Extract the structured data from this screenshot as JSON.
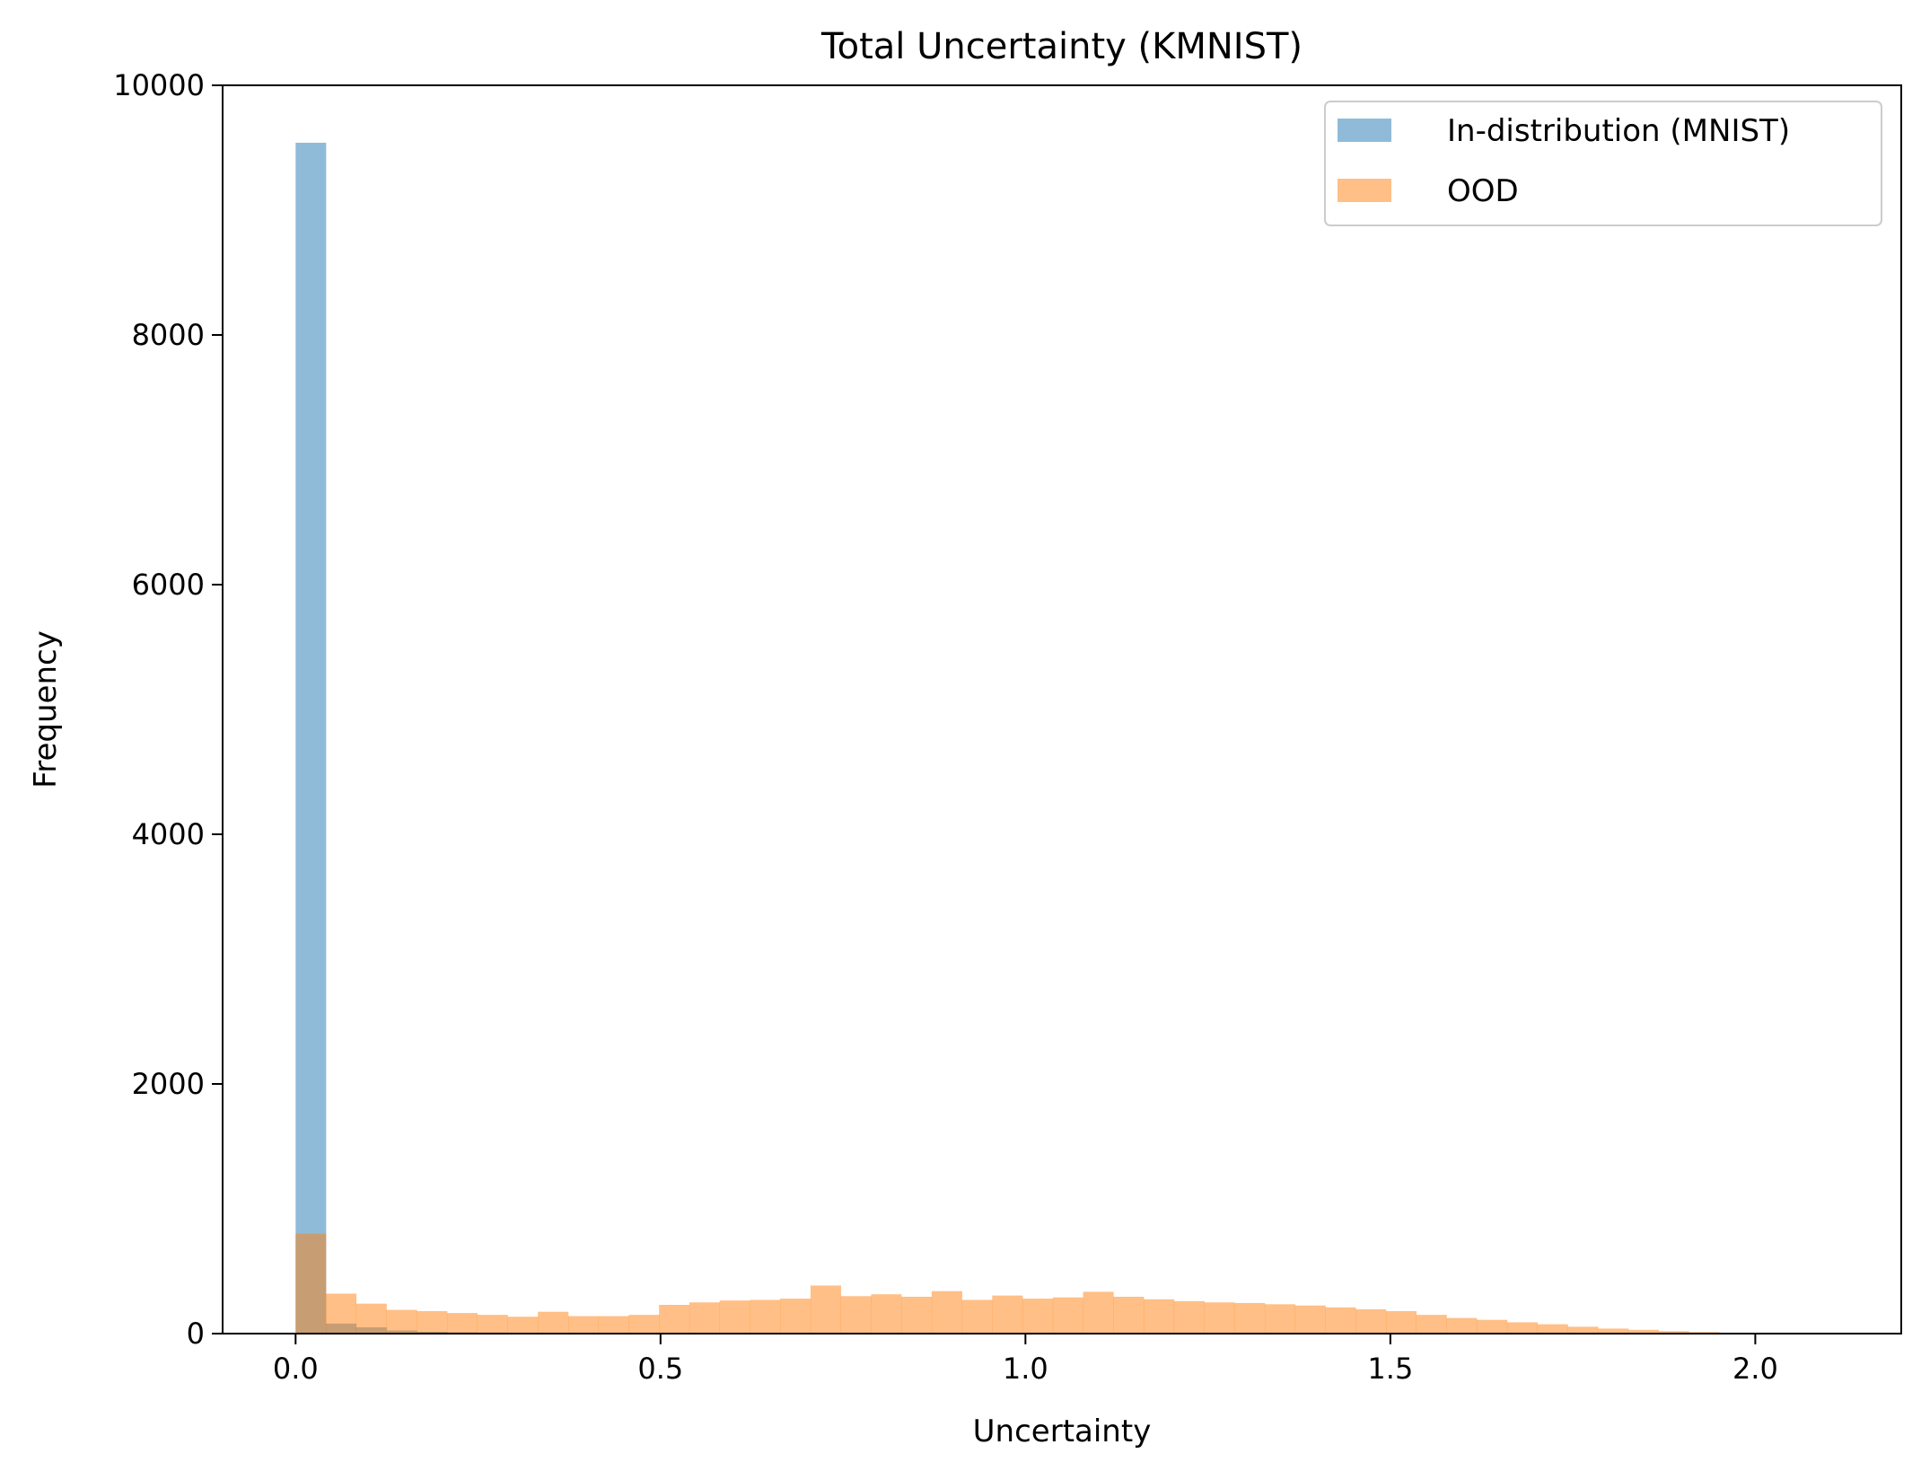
{
  "chart_data": {
    "type": "bar",
    "subtype": "overlapping histogram",
    "title": "Total Uncertainty (KMNIST)",
    "xlabel": "Uncertainty",
    "ylabel": "Frequency",
    "xlim": [
      -0.1,
      2.2
    ],
    "ylim": [
      0,
      10000
    ],
    "xticks": [
      0.0,
      0.5,
      1.0,
      1.5,
      2.0
    ],
    "xtick_labels": [
      "0.0",
      "0.5",
      "1.0",
      "1.5",
      "2.0"
    ],
    "yticks": [
      0,
      2000,
      4000,
      6000,
      8000,
      10000
    ],
    "ytick_labels": [
      "0",
      "2000",
      "4000",
      "6000",
      "8000",
      "10000"
    ],
    "grid": false,
    "legend_position": "top-right",
    "bin_start": 0.0,
    "bin_width": 0.0415,
    "series": [
      {
        "name": "In-distribution (MNIST)",
        "color": "#1f77b4",
        "opacity": 0.5,
        "values": [
          9540,
          80,
          50,
          25,
          15,
          10,
          8,
          6,
          5,
          4,
          3,
          3,
          2,
          2,
          2,
          2,
          2,
          2,
          1,
          1,
          1,
          1
        ]
      },
      {
        "name": "OOD",
        "color": "#ff7f0e",
        "opacity": 0.5,
        "values": [
          800,
          320,
          240,
          190,
          180,
          165,
          150,
          135,
          175,
          140,
          140,
          150,
          230,
          250,
          265,
          270,
          280,
          385,
          300,
          315,
          295,
          340,
          270,
          305,
          280,
          290,
          335,
          295,
          275,
          260,
          250,
          245,
          235,
          225,
          210,
          195,
          180,
          150,
          125,
          110,
          90,
          75,
          55,
          40,
          30,
          20,
          12,
          6,
          3
        ]
      }
    ]
  }
}
